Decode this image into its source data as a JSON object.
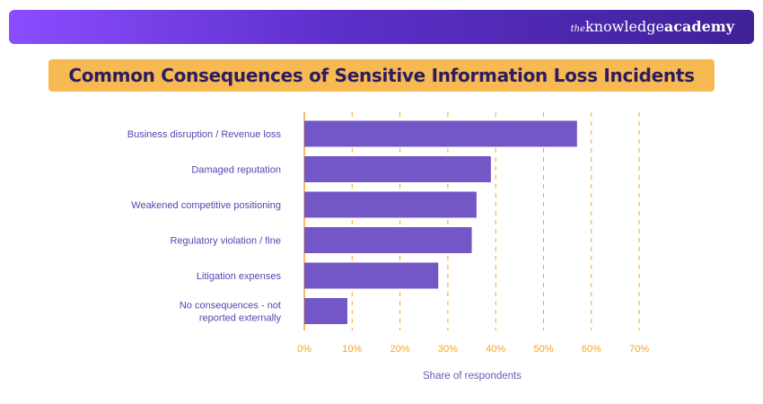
{
  "brand": {
    "prefix": "the",
    "knowledge": "knowledge",
    "academy": "academy"
  },
  "chart_data": {
    "type": "bar",
    "orientation": "horizontal",
    "title": "Common Consequences of Sensitive Information Loss Incidents",
    "xlabel": "Share of respondents",
    "ylabel": "",
    "categories": [
      "Business disruption / Revenue loss",
      "Damaged reputation",
      "Weakened competitive positioning",
      "Regulatory violation / fine",
      "Litigation expenses",
      "No consequences - not reported externally"
    ],
    "category_lines": [
      [
        "Business disruption / Revenue loss"
      ],
      [
        "Damaged reputation"
      ],
      [
        "Weakened competitive positioning"
      ],
      [
        "Regulatory violation / fine"
      ],
      [
        "Litigation expenses"
      ],
      [
        "No consequences - not",
        "reported externally"
      ]
    ],
    "values": [
      57,
      39,
      36,
      35,
      28,
      9
    ],
    "xlim": [
      0,
      70
    ],
    "xticks": [
      "0%",
      "10%",
      "20%",
      "30%",
      "40%",
      "50%",
      "60%",
      "70%"
    ],
    "grid": "vertical dashed",
    "colors": {
      "bar": "#7457c6",
      "grid": "#f5a623",
      "tick": "#f5a623",
      "label": "#5b43b0",
      "xlabel": "#6b5bb5"
    }
  }
}
